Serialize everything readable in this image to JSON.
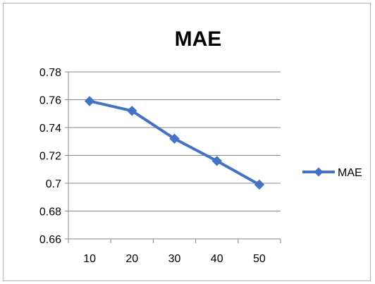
{
  "chart_data": {
    "type": "line",
    "title": "MAE",
    "xlabel": "",
    "ylabel": "",
    "categories": [
      "10",
      "20",
      "30",
      "40",
      "50"
    ],
    "series": [
      {
        "name": "MAE",
        "values": [
          0.759,
          0.752,
          0.732,
          0.716,
          0.699
        ],
        "color": "#4472C4",
        "marker": "diamond"
      }
    ],
    "ylim": [
      0.66,
      0.78
    ],
    "yticks": [
      "0.66",
      "0.68",
      "0.7",
      "0.72",
      "0.74",
      "0.76",
      "0.78"
    ],
    "grid": "horizontal",
    "legend_position": "right",
    "gridline_color": "#878787"
  }
}
